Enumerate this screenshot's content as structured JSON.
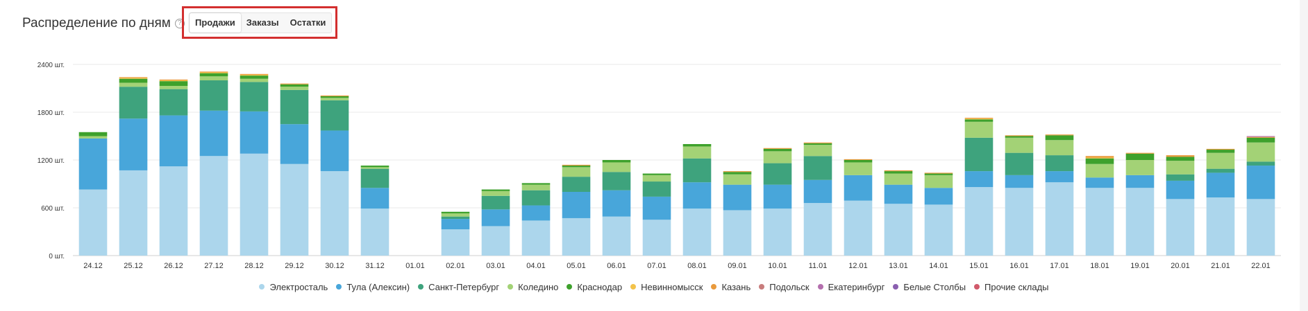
{
  "header": {
    "title": "Распределение по дням",
    "help_icon": "?"
  },
  "tabs": [
    {
      "label": "Продажи",
      "active": true
    },
    {
      "label": "Заказы",
      "active": false
    },
    {
      "label": "Остатки",
      "active": false
    }
  ],
  "chart_data": {
    "type": "bar",
    "stacked": true,
    "categories": [
      "24.12",
      "25.12",
      "26.12",
      "27.12",
      "28.12",
      "29.12",
      "30.12",
      "31.12",
      "01.01",
      "02.01",
      "03.01",
      "04.01",
      "05.01",
      "06.01",
      "07.01",
      "08.01",
      "09.01",
      "10.01",
      "11.01",
      "12.01",
      "13.01",
      "14.01",
      "15.01",
      "16.01",
      "17.01",
      "18.01",
      "19.01",
      "20.01",
      "21.01",
      "22.01"
    ],
    "ylim": [
      0,
      2400
    ],
    "yticks": [
      0,
      600,
      1200,
      1800,
      2400
    ],
    "ytick_labels": [
      "0 шт.",
      "600 шт.",
      "1200 шт.",
      "1800 шт.",
      "2400 шт."
    ],
    "grid": true,
    "legend_position": "bottom",
    "series": [
      {
        "name": "Электросталь",
        "color": "#acd6ec",
        "values": [
          830,
          1070,
          1120,
          1250,
          1280,
          1150,
          1060,
          590,
          0,
          330,
          370,
          440,
          470,
          490,
          450,
          590,
          570,
          590,
          660,
          690,
          650,
          640,
          860,
          850,
          920,
          850,
          850,
          710,
          730,
          710
        ]
      },
      {
        "name": "Тула (Алексин)",
        "color": "#48a6da",
        "values": [
          640,
          650,
          640,
          570,
          530,
          500,
          510,
          260,
          0,
          130,
          210,
          190,
          330,
          330,
          290,
          330,
          320,
          300,
          290,
          320,
          240,
          210,
          200,
          160,
          140,
          130,
          160,
          230,
          310,
          420
        ]
      },
      {
        "name": "Санкт-Петербург",
        "color": "#3ea37d",
        "values": [
          0,
          400,
          330,
          380,
          370,
          430,
          380,
          240,
          0,
          30,
          170,
          190,
          190,
          230,
          190,
          300,
          0,
          270,
          300,
          0,
          0,
          0,
          420,
          280,
          200,
          0,
          0,
          80,
          50,
          50
        ]
      },
      {
        "name": "Коледино",
        "color": "#a3d276",
        "values": [
          30,
          50,
          40,
          50,
          40,
          40,
          30,
          20,
          0,
          40,
          60,
          70,
          120,
          120,
          80,
          150,
          130,
          150,
          140,
          160,
          140,
          160,
          200,
          190,
          190,
          170,
          190,
          170,
          200,
          240
        ]
      },
      {
        "name": "Краснодар",
        "color": "#3ea12c",
        "values": [
          50,
          50,
          60,
          40,
          40,
          30,
          20,
          20,
          0,
          20,
          20,
          20,
          20,
          30,
          20,
          30,
          30,
          30,
          20,
          30,
          30,
          20,
          30,
          20,
          60,
          70,
          80,
          50,
          40,
          60
        ]
      },
      {
        "name": "Невинномысск",
        "color": "#f3c34a",
        "values": [
          0,
          10,
          10,
          10,
          10,
          0,
          0,
          0,
          0,
          0,
          0,
          0,
          0,
          0,
          0,
          0,
          0,
          0,
          0,
          0,
          0,
          0,
          10,
          0,
          0,
          10,
          0,
          0,
          0,
          0
        ]
      },
      {
        "name": "Казань",
        "color": "#e99a3c",
        "values": [
          0,
          10,
          10,
          10,
          10,
          10,
          10,
          0,
          0,
          0,
          0,
          0,
          10,
          0,
          0,
          0,
          10,
          10,
          10,
          10,
          10,
          10,
          10,
          10,
          10,
          20,
          10,
          20,
          10,
          10
        ]
      },
      {
        "name": "Подольск",
        "color": "#c87c7c",
        "values": [
          0,
          0,
          0,
          0,
          0,
          0,
          0,
          0,
          0,
          0,
          0,
          0,
          0,
          0,
          0,
          0,
          0,
          0,
          0,
          0,
          0,
          0,
          0,
          0,
          0,
          0,
          0,
          0,
          0,
          0
        ]
      },
      {
        "name": "Екатеринбург",
        "color": "#b46fae",
        "values": [
          0,
          0,
          0,
          0,
          0,
          0,
          0,
          0,
          0,
          0,
          0,
          0,
          0,
          0,
          0,
          0,
          0,
          0,
          0,
          0,
          0,
          0,
          0,
          0,
          0,
          0,
          0,
          0,
          0,
          10
        ]
      },
      {
        "name": "Белые Столбы",
        "color": "#8a5fb0",
        "values": [
          0,
          0,
          0,
          0,
          0,
          0,
          0,
          0,
          0,
          0,
          0,
          0,
          0,
          0,
          0,
          0,
          0,
          0,
          0,
          0,
          0,
          0,
          0,
          0,
          0,
          0,
          0,
          0,
          0,
          0
        ]
      },
      {
        "name": "Прочие склады",
        "color": "#d15a6b",
        "values": [
          0,
          0,
          0,
          0,
          0,
          0,
          0,
          0,
          0,
          0,
          0,
          0,
          0,
          0,
          0,
          0,
          0,
          0,
          0,
          0,
          0,
          0,
          0,
          0,
          0,
          0,
          0,
          0,
          0,
          0
        ]
      }
    ]
  }
}
